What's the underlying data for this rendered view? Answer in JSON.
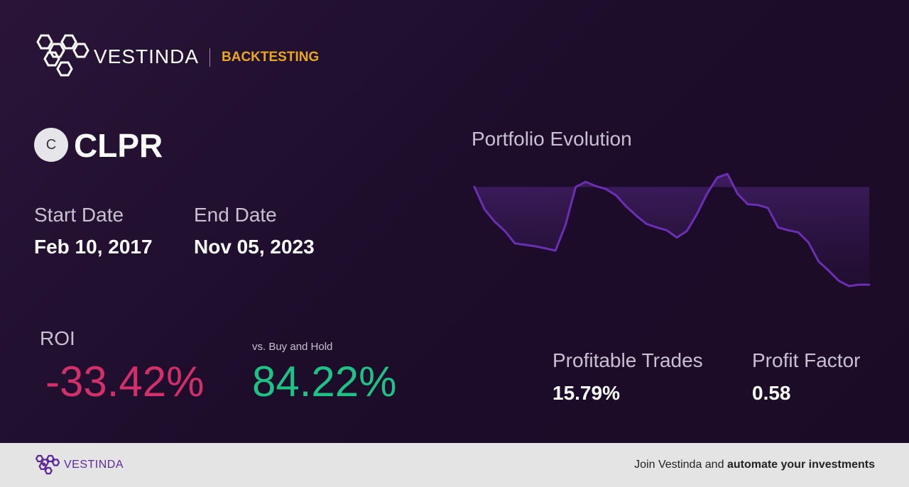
{
  "header": {
    "brand": "VESTINDA",
    "section": "BACKTESTING"
  },
  "asset": {
    "icon_letter": "C",
    "ticker": "CLPR"
  },
  "dates": {
    "start_label": "Start Date",
    "start_value": "Feb 10, 2017",
    "end_label": "End Date",
    "end_value": "Nov 05, 2023"
  },
  "roi": {
    "label": "ROI",
    "value": "-33.42%",
    "compare_label": "vs. Buy and Hold",
    "compare_value": "84.22%"
  },
  "stats": {
    "profitable_label": "Profitable Trades",
    "profitable_value": "15.79%",
    "factor_label": "Profit Factor",
    "factor_value": "0.58"
  },
  "chart_data": {
    "type": "line",
    "title": "Portfolio Evolution",
    "color": "#6b2fb3",
    "values": [
      100.2,
      92.5,
      88.3,
      85.1,
      80.8,
      80.3,
      79.8,
      79.1,
      78.3,
      87.1,
      100.2,
      102.0,
      100.5,
      99.5,
      97.3,
      93.5,
      90.3,
      87.5,
      86.3,
      85.3,
      82.8,
      85.1,
      91.0,
      98.0,
      103.5,
      104.7,
      97.8,
      94.3,
      94.0,
      93.0,
      86.3,
      85.3,
      84.6,
      81.1,
      74.6,
      71.4,
      67.9,
      66.1,
      66.6,
      66.6
    ]
  },
  "footer": {
    "brand": "VESTINDA",
    "cta_plain": "Join Vestinda and",
    "cta_bold": "automate your investments"
  }
}
